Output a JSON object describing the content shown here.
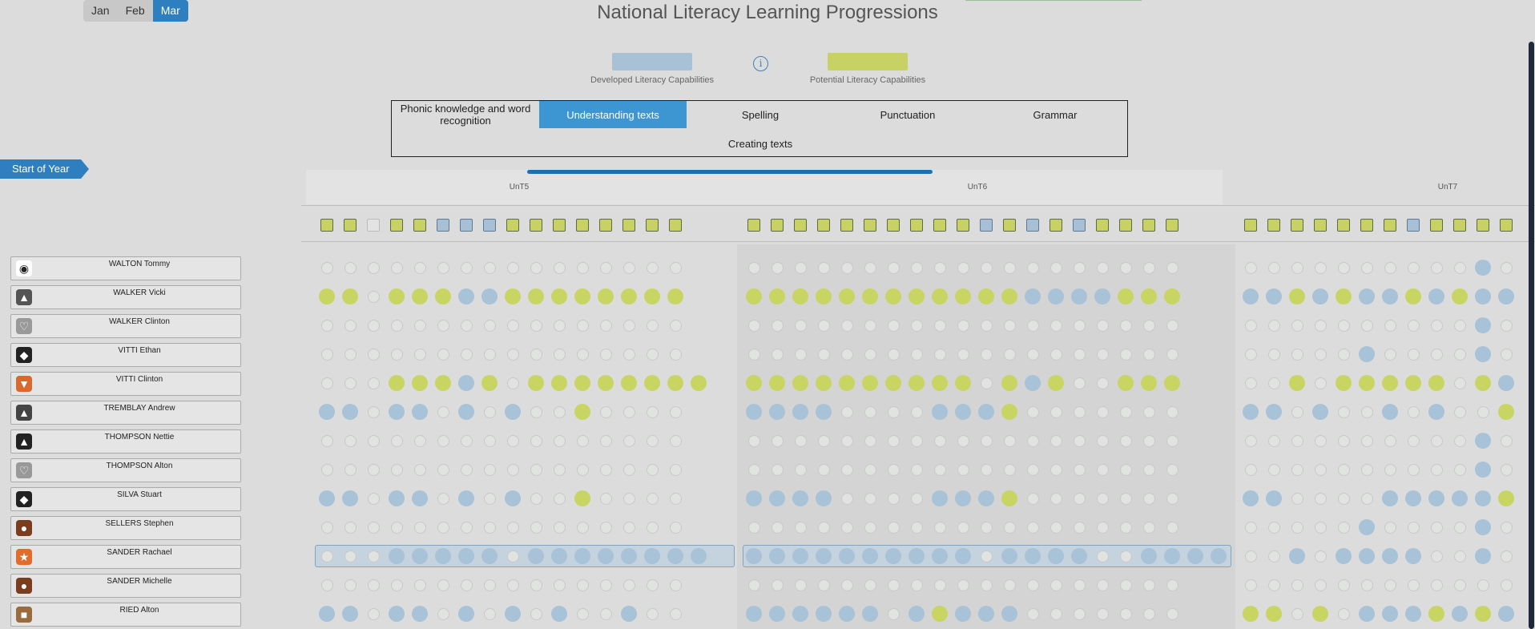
{
  "months": [
    {
      "label": "Jan",
      "active": false
    },
    {
      "label": "Feb",
      "active": false
    },
    {
      "label": "Mar",
      "active": true
    }
  ],
  "title": "National Literacy Learning Progressions",
  "legend": {
    "developed": {
      "label": "Developed Literacy Capabilities",
      "color": "#a9c1d6"
    },
    "potential": {
      "label": "Potential Literacy Capabilities",
      "color": "#c8d264"
    },
    "info_icon": "info-icon"
  },
  "tabs": [
    {
      "label": "Phonic knowledge and word recognition",
      "active": false
    },
    {
      "label": "Understanding texts",
      "active": true
    },
    {
      "label": "Spelling",
      "active": false
    },
    {
      "label": "Punctuation",
      "active": false
    },
    {
      "label": "Grammar",
      "active": false
    },
    {
      "label": "Creating texts",
      "active": false
    }
  ],
  "start_of_year": "Start of Year",
  "groups": [
    "UnT5",
    "UnT6",
    "UnT7"
  ],
  "column_markers": "ggeggbbbgggggggg|ggggggggggbgbgbgggg|gggggggbgggggg",
  "students": [
    {
      "name": "WALTON Tommy",
      "avatar": "panda-icon",
      "avatar_color": "#ffffff",
      "highlight": false,
      "dots": "eeeeeeeeeeeeeeee|eeeeeeeeeeeeeeeeeee|eeeeeeeeeebee"
    },
    {
      "name": "WALKER Vicki",
      "avatar": "cat-icon",
      "avatar_color": "#555555",
      "highlight": false,
      "dots": "ggegggbbgggggggg|ggggggggggggbbbbggg|bbgbgbbgbgbbb"
    },
    {
      "name": "WALKER Clinton",
      "avatar": "rabbit-icon",
      "avatar_color": "#999999",
      "highlight": false,
      "dots": "eeeeeeeeeeeeeeee|eeeeeeeeeeeeeeeeeee|eeeeeeeeeebeb"
    },
    {
      "name": "VITTI Ethan",
      "avatar": "penguin-icon",
      "avatar_color": "#222222",
      "highlight": false,
      "dots": "eeeeeeeeeeeeeeee|eeeeeeeeeeeeeeeeeee|eeeeebeeeebeb"
    },
    {
      "name": "VITTI Clinton",
      "avatar": "fox-icon",
      "avatar_color": "#d9692d",
      "highlight": false,
      "dots": "eeegggbgegggggggg|ggggggggggegbgeeggg|eegegggggegb"
    },
    {
      "name": "TREMBLAY Andrew",
      "avatar": "cat-icon",
      "avatar_color": "#444444",
      "highlight": false,
      "dots": "bbebbebebeegeeee|bbbbeeeebbbgeeeeeee|bbebeebebeegbb"
    },
    {
      "name": "THOMPSON Nettie",
      "avatar": "cat-icon",
      "avatar_color": "#222222",
      "highlight": false,
      "dots": "eeeeeeeeeeeeeeee|eeeeeeeeeeeeeeeeeee|eeeeeeeeeebeg"
    },
    {
      "name": "THOMPSON Alton",
      "avatar": "rabbit-icon",
      "avatar_color": "#999999",
      "highlight": false,
      "dots": "eeeeeeeeeeeeeeee|eeeeeeeeeeeeeeeeeee|eeeeeeeeeebeb"
    },
    {
      "name": "SILVA Stuart",
      "avatar": "penguin-icon",
      "avatar_color": "#222222",
      "highlight": false,
      "dots": "bbebbebebeegeeee|bbbbeeeebbbgeeeeeee|bbeeeebbbbbgbb"
    },
    {
      "name": "SELLERS Stephen",
      "avatar": "monkey-icon",
      "avatar_color": "#7a3e1e",
      "highlight": false,
      "dots": "eeeeeeeeeeeeeeee|eeeeeeeeeeeeeeeeeee|eeeeebeeeebeb"
    },
    {
      "name": "SANDER Rachael",
      "avatar": "tiger-icon",
      "avatar_color": "#e06d2b",
      "highlight": true,
      "dots": "eeebbbbbebbbbbbbb|bbbbbbbbbbebbbbeebbbb|eebebbbbeebeg"
    },
    {
      "name": "SANDER Michelle",
      "avatar": "monkey-icon",
      "avatar_color": "#7a3e1e",
      "highlight": false,
      "dots": "eeeeeeeeeeeeeeee|eeeeeeeeeeeeeeeeeee|eeeeeeeeeeeeb"
    },
    {
      "name": "RIED Alton",
      "avatar": "dog-icon",
      "avatar_color": "#9a6b3d",
      "highlight": false,
      "dots": "bbebbebebebeebee|bbbbbbebgbbbeeeeeee|ggegebbbgbgbb"
    }
  ]
}
